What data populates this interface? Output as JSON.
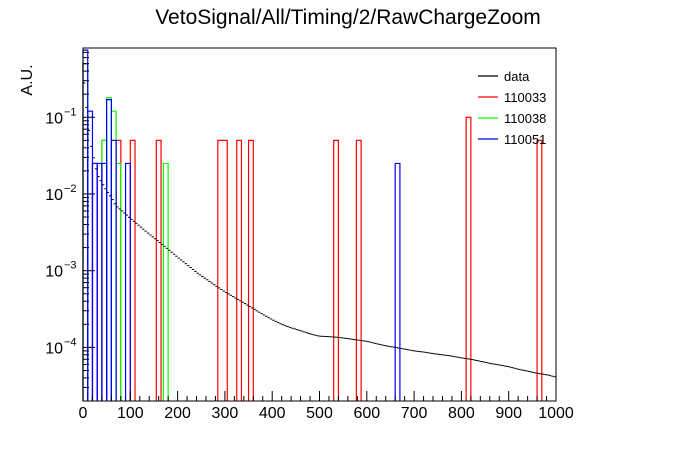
{
  "chart_data": {
    "type": "histogram",
    "title": "VetoSignal/All/Timing/2/RawChargeZoom",
    "xlabel": "",
    "ylabel": "A.U.",
    "xlim": [
      0,
      1000
    ],
    "ylim": [
      2e-05,
      0.8
    ],
    "yscale": "log",
    "grid": false,
    "legend_position": "top-right",
    "x_ticks": [
      {
        "value": 0,
        "label": "0"
      },
      {
        "value": 100,
        "label": "100"
      },
      {
        "value": 200,
        "label": "200"
      },
      {
        "value": 300,
        "label": "300"
      },
      {
        "value": 400,
        "label": "400"
      },
      {
        "value": 500,
        "label": "500"
      },
      {
        "value": 600,
        "label": "600"
      },
      {
        "value": 700,
        "label": "700"
      },
      {
        "value": 800,
        "label": "800"
      },
      {
        "value": 900,
        "label": "900"
      },
      {
        "value": 1000,
        "label": "1000"
      }
    ],
    "y_ticks": [
      {
        "value": 0.1,
        "label": "10",
        "exp": "−1"
      },
      {
        "value": 0.01,
        "label": "10",
        "exp": "−2"
      },
      {
        "value": 0.001,
        "label": "10",
        "exp": "−3"
      },
      {
        "value": 0.0001,
        "label": "10",
        "exp": "−4"
      }
    ],
    "series": [
      {
        "name": "data",
        "color": "#000000",
        "style": "points",
        "anchors": [
          [
            2,
            0.3
          ],
          [
            5,
            0.2
          ],
          [
            10,
            0.09
          ],
          [
            15,
            0.05
          ],
          [
            20,
            0.035
          ],
          [
            30,
            0.018
          ],
          [
            40,
            0.014
          ],
          [
            50,
            0.011
          ],
          [
            60,
            0.009
          ],
          [
            70,
            0.007
          ],
          [
            80,
            0.0062
          ],
          [
            90,
            0.0055
          ],
          [
            100,
            0.0048
          ],
          [
            120,
            0.0038
          ],
          [
            140,
            0.003
          ],
          [
            160,
            0.0024
          ],
          [
            180,
            0.0019
          ],
          [
            200,
            0.0015
          ],
          [
            220,
            0.0012
          ],
          [
            240,
            0.00095
          ],
          [
            260,
            0.00078
          ],
          [
            280,
            0.00064
          ],
          [
            300,
            0.00053
          ],
          [
            320,
            0.00045
          ],
          [
            340,
            0.00038
          ],
          [
            360,
            0.00032
          ],
          [
            380,
            0.00027
          ],
          [
            400,
            0.00023
          ],
          [
            420,
            0.0002
          ],
          [
            440,
            0.00018
          ],
          [
            460,
            0.000165
          ],
          [
            480,
            0.00015
          ],
          [
            500,
            0.00014
          ],
          [
            520,
            0.000138
          ],
          [
            540,
            0.000135
          ],
          [
            560,
            0.00013
          ],
          [
            580,
            0.000125
          ],
          [
            600,
            0.00012
          ],
          [
            620,
            0.000112
          ],
          [
            640,
            0.000105
          ],
          [
            660,
            0.0001
          ],
          [
            680,
            9.5e-05
          ],
          [
            700,
            9e-05
          ],
          [
            720,
            8.7e-05
          ],
          [
            740,
            8.3e-05
          ],
          [
            760,
            8e-05
          ],
          [
            780,
            7.7e-05
          ],
          [
            800,
            7.3e-05
          ],
          [
            820,
            7e-05
          ],
          [
            840,
            6.6e-05
          ],
          [
            860,
            6.2e-05
          ],
          [
            880,
            5.9e-05
          ],
          [
            900,
            5.6e-05
          ],
          [
            920,
            5.2e-05
          ],
          [
            940,
            4.9e-05
          ],
          [
            960,
            4.6e-05
          ],
          [
            980,
            4.4e-05
          ],
          [
            1000,
            4.1e-05
          ]
        ]
      },
      {
        "name": "110033",
        "color": "#ff0000",
        "style": "hist",
        "bins": [
          {
            "x0": 0,
            "x1": 10,
            "y": 0.5
          },
          {
            "x0": 20,
            "x1": 30,
            "y": 0.025
          },
          {
            "x0": 40,
            "x1": 50,
            "y": 0.05
          },
          {
            "x0": 70,
            "x1": 80,
            "y": 0.05
          },
          {
            "x0": 100,
            "x1": 110,
            "y": 0.05
          },
          {
            "x0": 155,
            "x1": 165,
            "y": 0.05
          },
          {
            "x0": 285,
            "x1": 305,
            "y": 0.05
          },
          {
            "x0": 325,
            "x1": 335,
            "y": 0.05
          },
          {
            "x0": 350,
            "x1": 360,
            "y": 0.05
          },
          {
            "x0": 530,
            "x1": 540,
            "y": 0.05
          },
          {
            "x0": 578,
            "x1": 588,
            "y": 0.05
          },
          {
            "x0": 810,
            "x1": 820,
            "y": 0.1
          },
          {
            "x0": 960,
            "x1": 970,
            "y": 0.05
          }
        ]
      },
      {
        "name": "110038",
        "color": "#00ff00",
        "style": "hist",
        "bins": [
          {
            "x0": 0,
            "x1": 10,
            "y": 0.5
          },
          {
            "x0": 40,
            "x1": 50,
            "y": 0.05
          },
          {
            "x0": 50,
            "x1": 60,
            "y": 0.18
          },
          {
            "x0": 60,
            "x1": 70,
            "y": 0.12
          },
          {
            "x0": 70,
            "x1": 80,
            "y": 0.025
          },
          {
            "x0": 170,
            "x1": 180,
            "y": 0.025
          }
        ]
      },
      {
        "name": "110051",
        "color": "#0000ff",
        "style": "hist",
        "bins": [
          {
            "x0": 0,
            "x1": 10,
            "y": 0.75
          },
          {
            "x0": 10,
            "x1": 20,
            "y": 0.12
          },
          {
            "x0": 20,
            "x1": 30,
            "y": 0.025
          },
          {
            "x0": 30,
            "x1": 40,
            "y": 0.025
          },
          {
            "x0": 40,
            "x1": 50,
            "y": 0.025
          },
          {
            "x0": 50,
            "x1": 60,
            "y": 0.17
          },
          {
            "x0": 60,
            "x1": 70,
            "y": 0.05
          },
          {
            "x0": 90,
            "x1": 100,
            "y": 0.025
          },
          {
            "x0": 660,
            "x1": 670,
            "y": 0.025
          }
        ]
      }
    ]
  }
}
